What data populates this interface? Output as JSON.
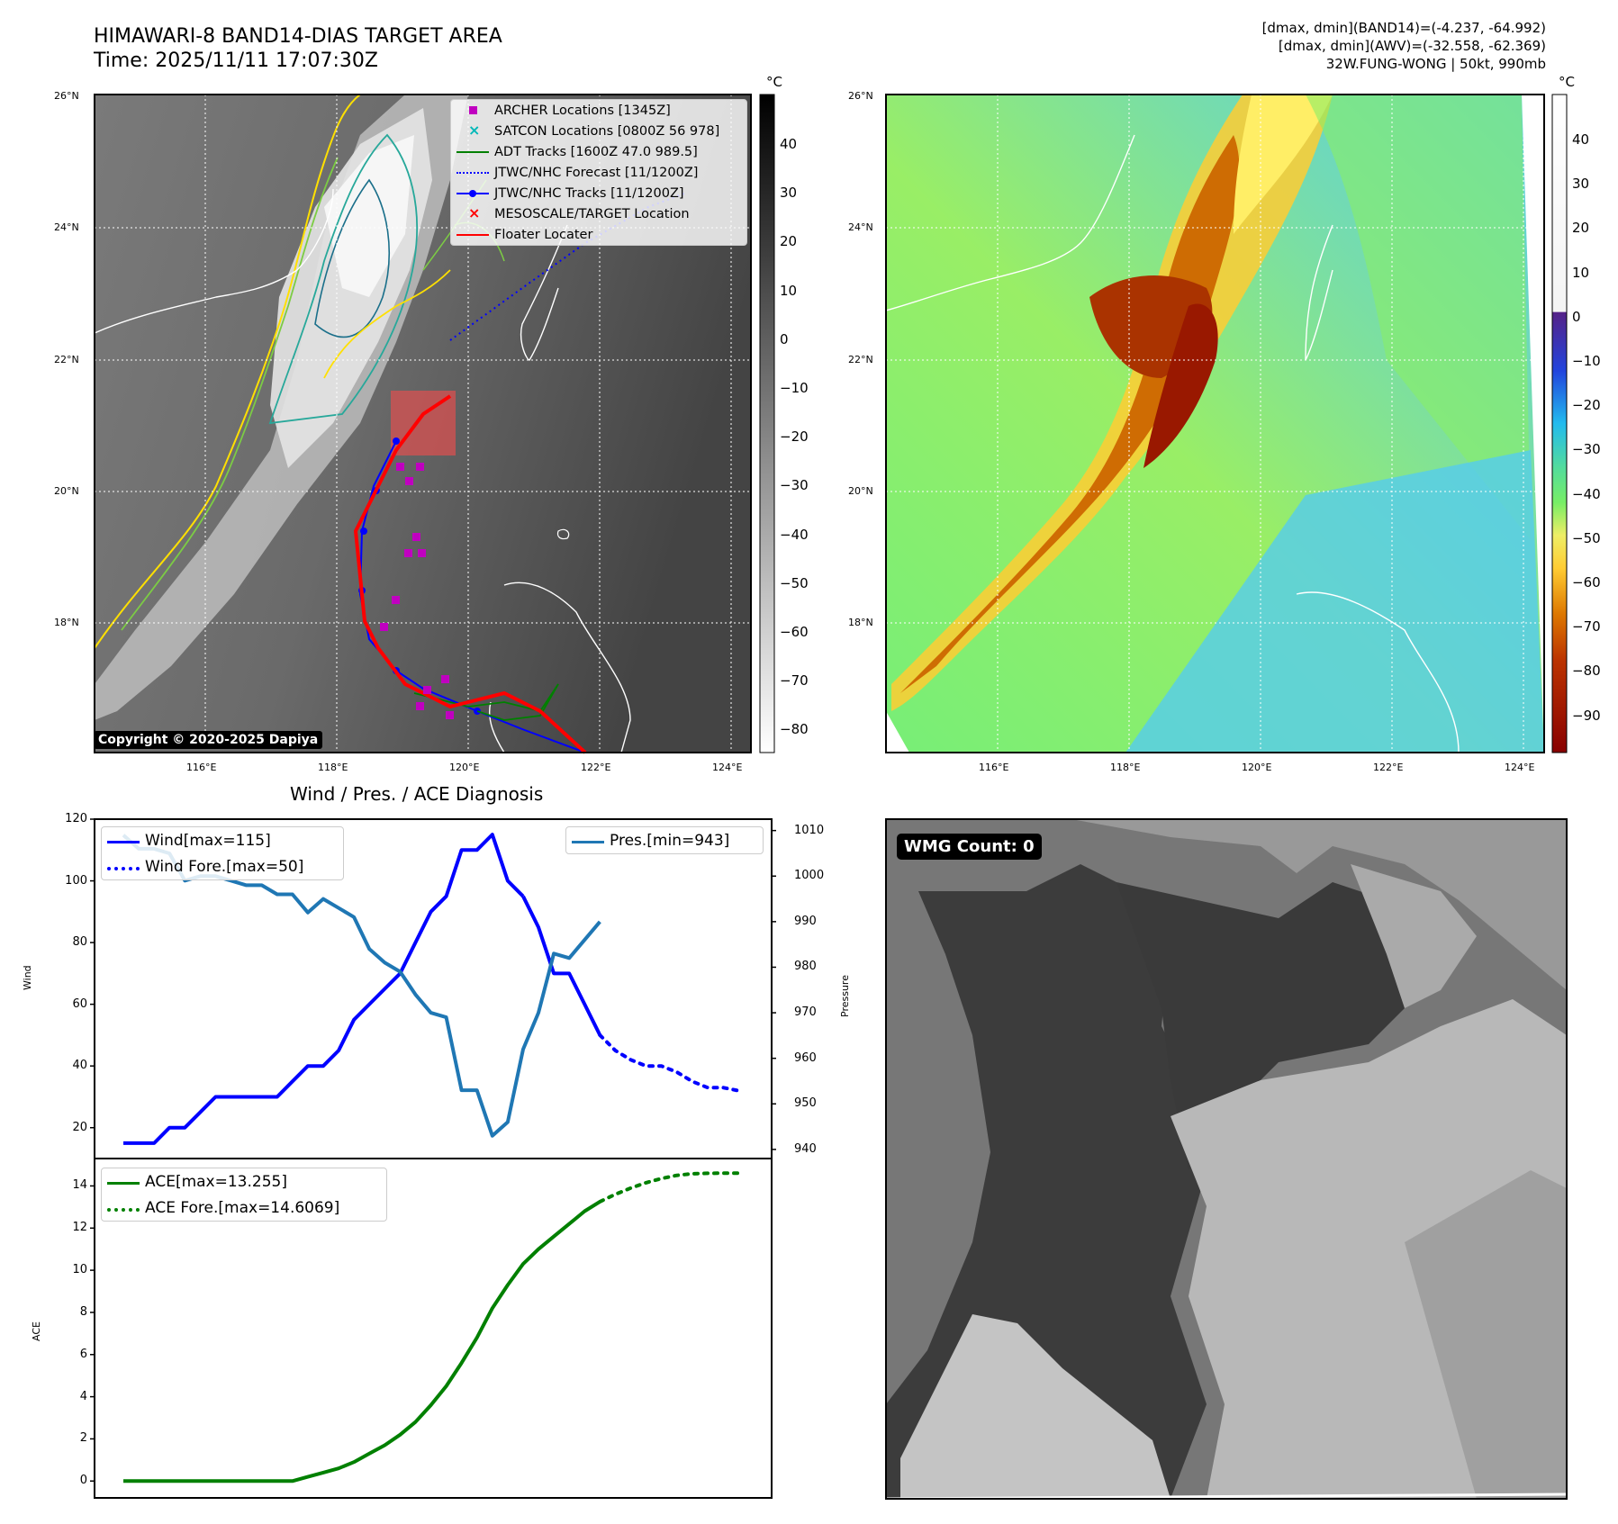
{
  "header": {
    "title_line1": "HIMAWARI-8 BAND14-DIAS TARGET AREA",
    "title_line2": "Time: 2025/11/11 17:07:30Z",
    "info_line1": "[dmax, dmin](BAND14)=(-4.237, -64.992)",
    "info_line2": "[dmax, dmin](AWV)=(-32.558, -62.369)",
    "info_line3": "32W.FUNG-WONG | 50kt, 990mb"
  },
  "map_common": {
    "lat_labels": [
      "26°N",
      "24°N",
      "22°N",
      "20°N",
      "18°N"
    ],
    "lon_labels": [
      "116°E",
      "118°E",
      "120°E",
      "122°E",
      "124°E"
    ]
  },
  "ir_panel": {
    "copyright": "Copyright © 2020-2025 Dapiya",
    "colorbar_unit": "°C",
    "colorbar_ticks": [
      "40",
      "30",
      "20",
      "10",
      "0",
      "−10",
      "−20",
      "−30",
      "−40",
      "−50",
      "−60",
      "−70",
      "−80"
    ],
    "legend": [
      {
        "label": "ARCHER Locations [1345Z]",
        "symbol": "square",
        "color": "#c000c0"
      },
      {
        "label": "SATCON Locations [0800Z 56 978]",
        "symbol": "x",
        "color": "#00b8b8"
      },
      {
        "label": "ADT Tracks [1600Z 47.0 989.5]",
        "symbol": "line",
        "color": "#008000"
      },
      {
        "label": "JTWC/NHC Forecast [11/1200Z]",
        "symbol": "dotted",
        "color": "#0000ff"
      },
      {
        "label": "JTWC/NHC Tracks [11/1200Z]",
        "symbol": "line-dot",
        "color": "#0000ff"
      },
      {
        "label": "MESOSCALE/TARGET Location",
        "symbol": "x",
        "color": "#ff0000"
      },
      {
        "label": "Floater Locater",
        "symbol": "line",
        "color": "#ff0000"
      }
    ]
  },
  "awv_panel": {
    "colorbar_unit": "°C",
    "colorbar_ticks": [
      "40",
      "30",
      "20",
      "10",
      "0",
      "−10",
      "−20",
      "−30",
      "−40",
      "−50",
      "−60",
      "−70",
      "−80",
      "−90"
    ]
  },
  "wmg_panel": {
    "label": "WMG Count: 0"
  },
  "chart_data": [
    {
      "type": "line",
      "title": "Wind / Pres. / ACE Diagnosis",
      "ylabel": "Wind",
      "y2label": "Pressure",
      "ylim": [
        10,
        120
      ],
      "y2lim": [
        938,
        1012.5
      ],
      "yticks": [
        "20",
        "40",
        "60",
        "80",
        "100",
        "120"
      ],
      "y2ticks": [
        "940",
        "950",
        "960",
        "970",
        "980",
        "990",
        "1000",
        "1010"
      ],
      "series": [
        {
          "name": "Wind[max=115]",
          "color": "#0000ff",
          "style": "solid",
          "x": [
            0,
            1,
            2,
            3,
            4,
            5,
            6,
            7,
            8,
            9,
            10,
            11,
            12,
            13,
            14,
            15,
            16,
            17,
            18,
            19,
            20,
            21,
            22,
            23,
            24,
            25,
            26
          ],
          "values": [
            15,
            15,
            15,
            20,
            20,
            25,
            30,
            30,
            30,
            30,
            30,
            35,
            40,
            40,
            45,
            55,
            60,
            65,
            70,
            80,
            90,
            95,
            110,
            110,
            115,
            100,
            95
          ]
        },
        {
          "name": "Wind[max=115] (cont.)",
          "color": "#0000ff",
          "style": "solid",
          "x": [
            26,
            27,
            28,
            29,
            30,
            31
          ],
          "values": [
            95,
            85,
            70,
            70,
            60,
            50
          ]
        },
        {
          "name": "Wind Fore.[max=50]",
          "color": "#0000ff",
          "style": "dotted",
          "x": [
            31,
            32,
            33,
            34,
            35,
            36,
            37,
            38,
            39,
            40
          ],
          "values": [
            50,
            45,
            42,
            40,
            40,
            38,
            35,
            33,
            33,
            32
          ]
        },
        {
          "name": "Pres.[min=943]",
          "color": "#1f77b4",
          "style": "solid",
          "axis": "right",
          "x": [
            0,
            1,
            2,
            3,
            4,
            5,
            6,
            7,
            8,
            9,
            10,
            11,
            12,
            13,
            14,
            15,
            16,
            17,
            18,
            19,
            20,
            21,
            22,
            23,
            24,
            25,
            26,
            27,
            28,
            29,
            30,
            31
          ],
          "values": [
            1009,
            1006,
            1006,
            1005,
            999,
            1000,
            1000,
            999,
            998,
            998,
            996,
            996,
            992,
            995,
            993,
            991,
            984,
            981,
            979,
            974,
            970,
            969,
            953,
            953,
            943,
            946,
            962,
            970,
            983,
            982,
            986,
            990
          ]
        }
      ],
      "legend": [
        {
          "label": "Wind[max=115]",
          "color": "#0000ff",
          "style": "solid"
        },
        {
          "label": "Wind Fore.[max=50]",
          "color": "#0000ff",
          "style": "dotted"
        }
      ],
      "legend_right": {
        "label": "Pres.[min=943]",
        "color": "#1f77b4",
        "style": "solid"
      }
    },
    {
      "type": "line",
      "ylabel": "ACE",
      "ylim": [
        -0.8,
        15.3
      ],
      "yticks": [
        "0",
        "2",
        "4",
        "6",
        "8",
        "10",
        "12",
        "14"
      ],
      "series": [
        {
          "name": "ACE[max=13.255]",
          "color": "#008000",
          "style": "solid",
          "x": [
            0,
            1,
            2,
            3,
            4,
            5,
            6,
            7,
            8,
            9,
            10,
            11,
            12,
            13,
            14,
            15,
            16,
            17,
            18,
            19,
            20,
            21,
            22,
            23,
            24,
            25,
            26,
            27,
            28,
            29,
            30,
            31
          ],
          "values": [
            0,
            0,
            0,
            0,
            0,
            0,
            0,
            0,
            0,
            0,
            0,
            0,
            0.2,
            0.4,
            0.6,
            0.9,
            1.3,
            1.7,
            2.2,
            2.8,
            3.6,
            4.5,
            5.6,
            6.8,
            8.2,
            9.3,
            10.3,
            11.0,
            11.6,
            12.2,
            12.8,
            13.255
          ]
        },
        {
          "name": "ACE Fore.[max=14.6069]",
          "color": "#008000",
          "style": "dotted",
          "x": [
            31,
            32,
            33,
            34,
            35,
            36,
            37,
            38,
            39,
            40
          ],
          "values": [
            13.255,
            13.6,
            13.9,
            14.15,
            14.35,
            14.5,
            14.58,
            14.6,
            14.6069,
            14.6069
          ]
        }
      ],
      "legend": [
        {
          "label": "ACE[max=13.255]",
          "color": "#008000",
          "style": "solid"
        },
        {
          "label": "ACE Fore.[max=14.6069]",
          "color": "#008000",
          "style": "dotted"
        }
      ]
    }
  ]
}
